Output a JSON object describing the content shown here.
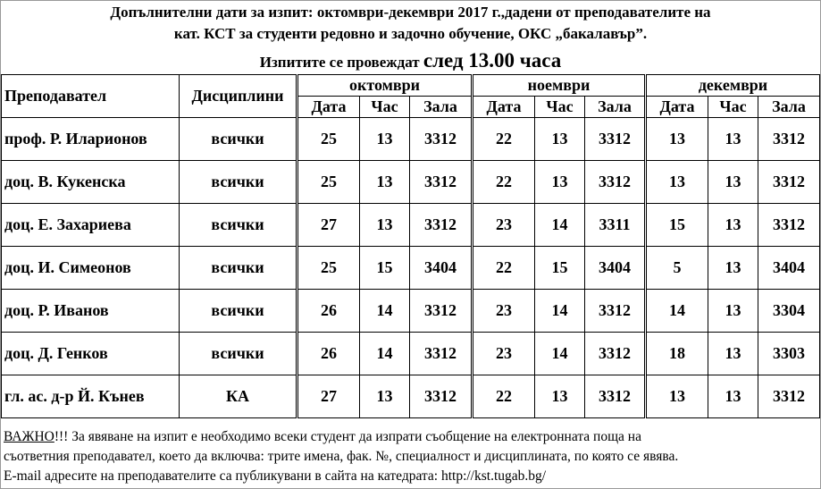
{
  "title": {
    "line1": "Допълнителни дати за изпит: октомври-декември 2017 г.,дадени от преподавателите на",
    "line2": "кат. КСТ за студенти редовно и задочно обучение, ОКС „бакалавър”.",
    "line3_prefix": "Изпитите се провеждат ",
    "line3_big": "след 13.00 часа"
  },
  "table": {
    "col_teacher": "Преподавател",
    "col_disc": "Дисциплини",
    "months": [
      "октомври",
      "ноември",
      "декември"
    ],
    "sub": [
      "Дата",
      "Час",
      "Зала"
    ],
    "rows": [
      {
        "teacher": "проф. Р. Иларионов",
        "disc": "всички",
        "v": [
          "25",
          "13",
          "3312",
          "22",
          "13",
          "3312",
          "13",
          "13",
          "3312"
        ]
      },
      {
        "teacher": "доц. В. Кукенска",
        "disc": "всички",
        "v": [
          "25",
          "13",
          "3312",
          "22",
          "13",
          "3312",
          "13",
          "13",
          "3312"
        ]
      },
      {
        "teacher": "доц. Е. Захариева",
        "disc": "всички",
        "v": [
          "27",
          "13",
          "3312",
          "23",
          "14",
          "3311",
          "15",
          "13",
          "3312"
        ]
      },
      {
        "teacher": "доц. И. Симеонов",
        "disc": "всички",
        "v": [
          "25",
          "15",
          "3404",
          "22",
          "15",
          "3404",
          "5",
          "13",
          "3404"
        ]
      },
      {
        "teacher": "доц. Р. Иванов",
        "disc": "всички",
        "v": [
          "26",
          "14",
          "3312",
          "23",
          "14",
          "3312",
          "14",
          "13",
          "3304"
        ]
      },
      {
        "teacher": "доц. Д. Генков",
        "disc": "всички",
        "v": [
          "26",
          "14",
          "3312",
          "23",
          "14",
          "3312",
          "18",
          "13",
          "3303"
        ]
      },
      {
        "teacher": "гл. ас. д-р Й. Кънев",
        "disc": "КА",
        "v": [
          "27",
          "13",
          "3312",
          "22",
          "13",
          "3312",
          "13",
          "13",
          "3312"
        ]
      }
    ]
  },
  "notes": {
    "important": "ВАЖНО",
    "line1_rest": "!!! За явяване на изпит е необходимо всеки студент да изпрати съобщение на електронната поща на",
    "line2": "съответния преподавател, което да включва: трите имена, фак. №, специалност и дисциплината, по която се явява.",
    "line3": "E-mail адресите на преподавателите са публикувани в сайта на катедрата: http://kst.tugab.bg/"
  }
}
